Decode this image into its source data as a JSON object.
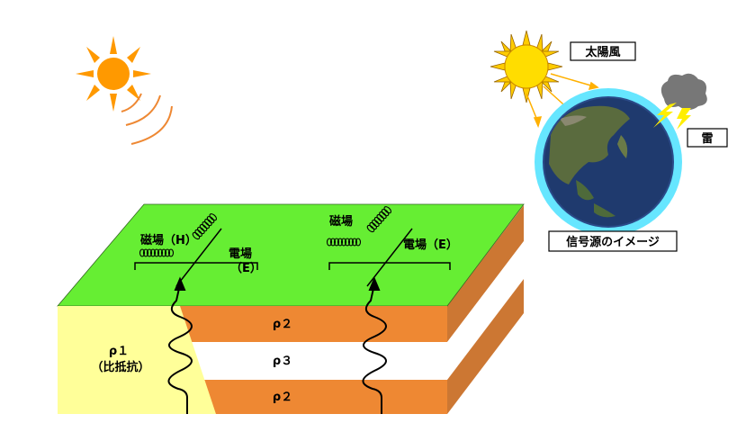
{
  "labels": {
    "solar_wind": "太陽風",
    "lightning": "雷",
    "signal_source": "信号源のイメージ",
    "magnetic_field": "磁場（H）",
    "magnetic_field_right": "磁場",
    "electric_field_left_top": "電場",
    "electric_field_left_bottom": "（E）",
    "electric_field_right": "電場（E）",
    "rho1": "ρ１",
    "rho1_note": "（比抵抗）",
    "rho2_top": "ρ２",
    "rho3": "ρ３",
    "rho2_bottom": "ρ２"
  },
  "colors": {
    "surface_green": "#66ee33",
    "layer_orange": "#ee8833",
    "layer_orange_side": "#cc7733",
    "left_block_yellow": "#ffff99",
    "sun_yellow": "#ffcc00",
    "sun_orange": "#ff9900",
    "atmosphere_cyan": "#66e6ff",
    "earth_blue": "#1f3a6e"
  }
}
